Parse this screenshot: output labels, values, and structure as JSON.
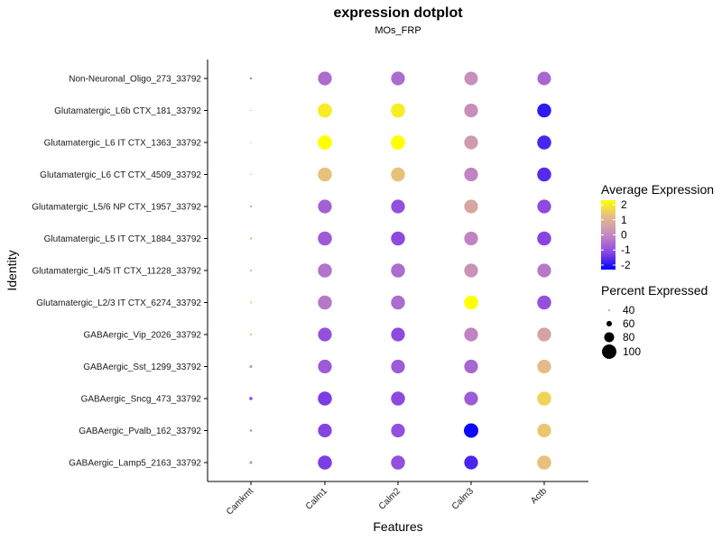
{
  "chart_data": {
    "type": "dotplot",
    "title": "expression dotplot",
    "subtitle": "MOs_FRP",
    "xlabel": "Features",
    "ylabel": "Identity",
    "features": [
      "Camkmt",
      "Calm1",
      "Calm2",
      "Calm3",
      "Actb"
    ],
    "identities": [
      "Non-Neuronal_Oligo_273_33792",
      "Glutamatergic_L6b CTX_181_33792",
      "Glutamatergic_L6 IT CTX_1363_33792",
      "Glutamatergic_L6 CT CTX_4509_33792",
      "Glutamatergic_L5/6 NP CTX_1957_33792",
      "Glutamatergic_L5 IT CTX_1884_33792",
      "Glutamatergic_L4/5 IT CTX_11228_33792",
      "Glutamatergic_L2/3 IT CTX_6274_33792",
      "GABAergic_Vip_2026_33792",
      "GABAergic_Sst_1299_33792",
      "GABAergic_Sncg_473_33792",
      "GABAergic_Pvalb_162_33792",
      "GABAergic_Lamp5_2163_33792"
    ],
    "average_expression": [
      [
        -1.2,
        -0.5,
        -0.5,
        0.1,
        -0.6
      ],
      [
        -1.0,
        2.0,
        2.0,
        0.1,
        -1.9
      ],
      [
        -0.9,
        2.3,
        2.3,
        0.4,
        -1.7
      ],
      [
        -1.1,
        1.3,
        1.3,
        -0.1,
        -1.6
      ],
      [
        -0.3,
        -0.7,
        -1.0,
        0.7,
        -1.1
      ],
      [
        1.2,
        -0.8,
        -1.1,
        -0.1,
        -1.2
      ],
      [
        0.5,
        -0.4,
        -0.5,
        0.2,
        -0.3
      ],
      [
        1.6,
        -0.3,
        -0.5,
        2.3,
        -1.0
      ],
      [
        1.4,
        -1.0,
        -1.1,
        -0.1,
        0.6
      ],
      [
        0.4,
        -0.8,
        -0.8,
        -0.6,
        1.2
      ],
      [
        -1.0,
        -1.3,
        -1.1,
        -0.8,
        1.6
      ],
      [
        -0.7,
        -1.2,
        -1.0,
        -2.2,
        1.4
      ],
      [
        0.3,
        -1.3,
        -1.0,
        -1.7,
        1.3
      ]
    ],
    "percent_expressed": [
      [
        43,
        97,
        97,
        96,
        96
      ],
      [
        38,
        99,
        99,
        97,
        98
      ],
      [
        37,
        99,
        99,
        97,
        98
      ],
      [
        39,
        98,
        98,
        97,
        98
      ],
      [
        43,
        97,
        97,
        97,
        97
      ],
      [
        45,
        98,
        98,
        97,
        98
      ],
      [
        43,
        98,
        98,
        97,
        97
      ],
      [
        44,
        98,
        98,
        98,
        98
      ],
      [
        45,
        97,
        97,
        97,
        97
      ],
      [
        48,
        97,
        97,
        97,
        97
      ],
      [
        50,
        98,
        98,
        97,
        98
      ],
      [
        44,
        97,
        97,
        100,
        97
      ],
      [
        48,
        98,
        98,
        97,
        98
      ]
    ],
    "color_scale": {
      "low": "#0000ff",
      "mid": "#c58ac0",
      "high": "#ffff00",
      "breaks": [
        2,
        1,
        0,
        -1,
        -2
      ],
      "range": [
        -2.3,
        2.3
      ]
    },
    "size_scale": {
      "breaks": [
        40,
        60,
        80,
        100
      ]
    },
    "legend": {
      "color_title": "Average Expression",
      "size_title": "Percent Expressed",
      "position": "right"
    }
  }
}
